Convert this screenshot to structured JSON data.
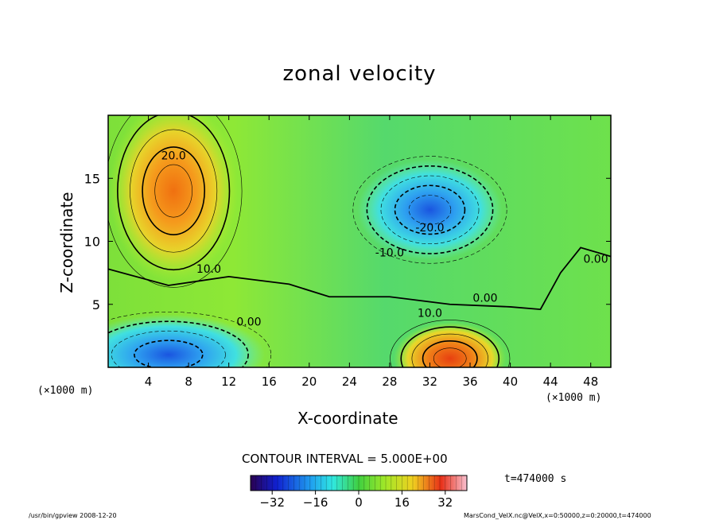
{
  "chart_data": {
    "type": "heatmap",
    "title": "zonal velocity",
    "xlabel": "X-coordinate",
    "ylabel": "Z-coordinate",
    "x_unit": "(×1000 m)",
    "xlim": [
      0,
      50
    ],
    "ylim": [
      0,
      20
    ],
    "xticks": [
      4,
      8,
      12,
      16,
      20,
      24,
      28,
      32,
      36,
      40,
      44,
      48
    ],
    "yticks": [
      5,
      10,
      15
    ],
    "contour_interval_text": "CONTOUR INTERVAL = 5.000E+00",
    "colorbar": {
      "min": -40,
      "max": 40,
      "ticks": [
        -32,
        -16,
        0,
        16,
        32
      ]
    },
    "time_text": "t=474000 s",
    "contour_labels": [
      {
        "text": "20.0",
        "x": 6.5,
        "y": 16.5
      },
      {
        "text": "10.0",
        "x": 10,
        "y": 7.5
      },
      {
        "text": "-10.0",
        "x": 28,
        "y": 8.8
      },
      {
        "text": "-20.0",
        "x": 32,
        "y": 10.8
      },
      {
        "text": "0.00",
        "x": 48.5,
        "y": 8.3
      },
      {
        "text": "0.00",
        "x": 37.5,
        "y": 5.2
      },
      {
        "text": "10.0",
        "x": 32,
        "y": 4.0
      },
      {
        "text": "0.00",
        "x": 14,
        "y": 3.3
      }
    ],
    "features": [
      {
        "sign": "positive",
        "peak": 25,
        "x": 6.5,
        "y": 14,
        "sx": 4,
        "sy": 4.5
      },
      {
        "sign": "negative",
        "peak": -25,
        "x": 32,
        "y": 12.5,
        "sx": 4.5,
        "sy": 2.5
      },
      {
        "sign": "negative",
        "peak": -22,
        "x": 6,
        "y": 1,
        "sx": 6,
        "sy": 2
      },
      {
        "sign": "positive",
        "peak": 28,
        "x": 34,
        "y": 0.7,
        "sx": 3.5,
        "sy": 1.8
      }
    ]
  },
  "footer": {
    "left": "/usr/bin/gpview  2008-12-20",
    "right": "MarsCond_VelX.nc@VelX,x=0:50000,z=0:20000,t=474000"
  }
}
